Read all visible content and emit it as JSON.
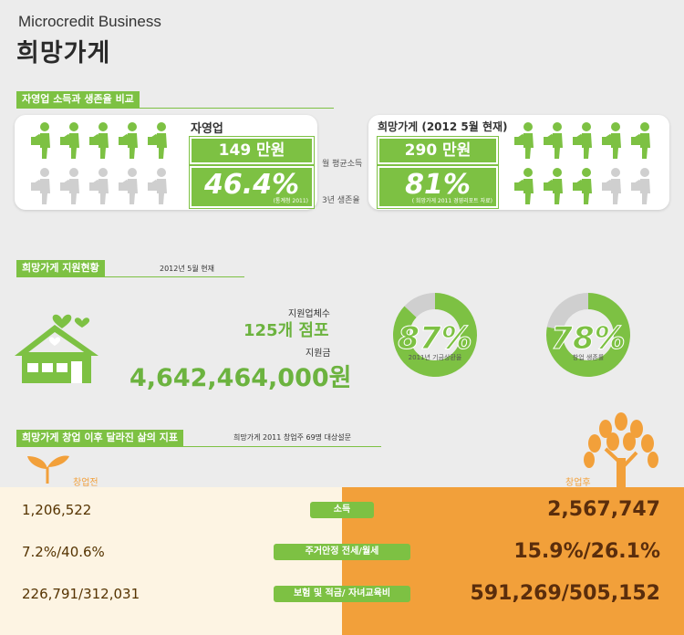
{
  "header": {
    "brand": "Microcredit Business",
    "title": "희망가게"
  },
  "section1": {
    "label": "자영업 소득과 생존율 비교",
    "left": {
      "name": "자영업",
      "income": "149 만원",
      "survival": "46.4%",
      "source": "(통계청 2011)",
      "survival_rate": 0.464
    },
    "right": {
      "name": "희망가게 (2012 5월 현재)",
      "income": "290 만원",
      "survival": "81%",
      "source": "( 희망가게 2011 경영리포트 자료)",
      "survival_rate": 0.81
    },
    "middle": {
      "income_label": "월 평균소득",
      "survival_label": "3년 생존율"
    }
  },
  "section2": {
    "label": "희망가게 지원현황",
    "date": "2012년  5월  현재",
    "stores_label": "지원업체수",
    "stores_value": "125개 점포",
    "amount_label": "지원금",
    "amount_value": "4,642,464,000원"
  },
  "section3": {
    "label": "희망가게 창업 이후 달라진 삶의 지표",
    "note": "희망가게 2011 창업주 69명 대상설문",
    "before_label": "창업전",
    "after_label": "창업후"
  },
  "chart_data": [
    {
      "type": "pie",
      "values": [
        87,
        13
      ],
      "center_label": "87%",
      "caption": "2011년 기금상환율"
    },
    {
      "type": "pie",
      "values": [
        78,
        22
      ],
      "center_label": "78%",
      "caption": "창업 생존률"
    },
    {
      "type": "table",
      "columns": [
        "창업전",
        "",
        "창업후"
      ],
      "rows": [
        {
          "before": "1,206,522",
          "label": "소득",
          "after": "2,567,747"
        },
        {
          "before": "7.2%/40.6%",
          "label": "주거안정 전세/월세",
          "after": "15.9%/26.1%"
        },
        {
          "before": "226,791/312,031",
          "label": "보험 및 적금/ 자녀교육비",
          "after": "591,269/505,152"
        }
      ]
    }
  ],
  "colors": {
    "green": "#7dc143",
    "orange": "#f2a03a",
    "grey": "#cfcfcf",
    "brown": "#5a2d0c"
  }
}
